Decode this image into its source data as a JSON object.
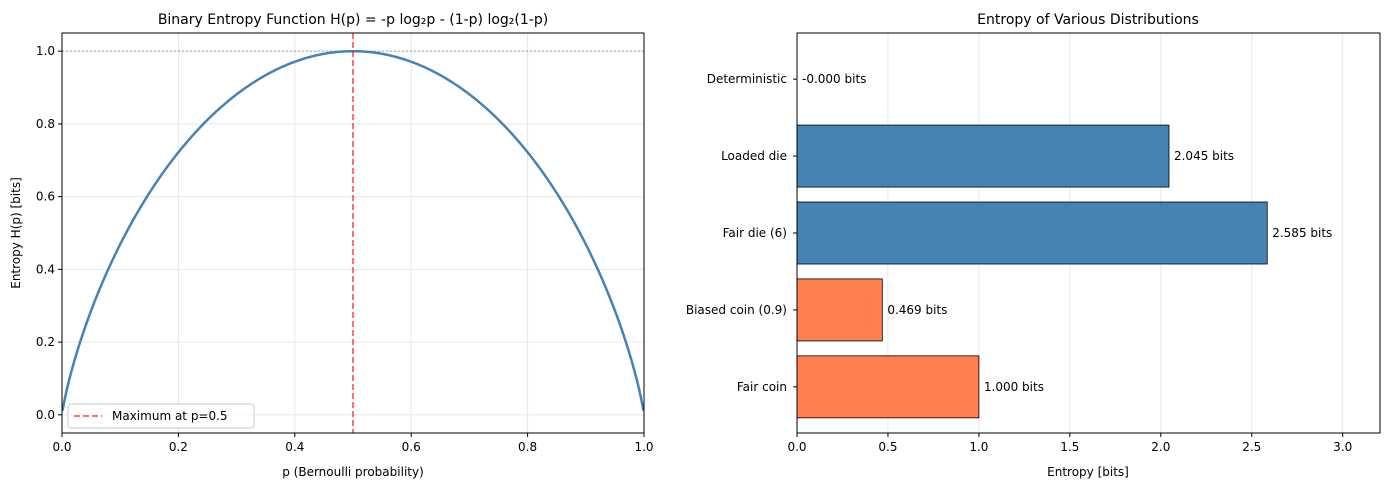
{
  "chart_data": [
    {
      "type": "line",
      "title": "Binary Entropy Function H(p) = -p log₂p - (1-p) log₂(1-p)",
      "xlabel": "p (Bernoulli probability)",
      "ylabel": "Entropy H(p) [bits]",
      "xlim": [
        0,
        1
      ],
      "ylim": [
        -0.05,
        1.05
      ],
      "xticks": [
        "0.0",
        "0.2",
        "0.4",
        "0.6",
        "0.8",
        "1.0"
      ],
      "yticks": [
        "0.0",
        "0.2",
        "0.4",
        "0.6",
        "0.8",
        "1.0"
      ],
      "grid": true,
      "series": [
        {
          "function": "binary_entropy",
          "color": "#4682b4"
        }
      ],
      "annotations": {
        "vline": {
          "x": 0.5,
          "color": "#ff0000",
          "label": "Maximum at p=0.5"
        },
        "hline": {
          "y": 1.0,
          "color": "#808080"
        }
      },
      "legend": {
        "placement": "lower-left",
        "entries": [
          "Maximum at p=0.5"
        ]
      }
    },
    {
      "type": "bar",
      "orientation": "horizontal",
      "title": "Entropy of Various Distributions",
      "xlabel": "Entropy [bits]",
      "ylabel": "",
      "xlim": [
        0,
        3.2
      ],
      "xticks": [
        "0.0",
        "0.5",
        "1.0",
        "1.5",
        "2.0",
        "2.5",
        "3.0"
      ],
      "grid": true,
      "categories": [
        "Fair coin",
        "Biased coin (0.9)",
        "Fair die (6)",
        "Loaded die",
        "Deterministic"
      ],
      "values": [
        1.0,
        0.469,
        2.585,
        2.045,
        0.0
      ],
      "data_labels": [
        "1.000 bits",
        "0.469 bits",
        "2.585 bits",
        "2.045 bits",
        "-0.000 bits"
      ],
      "colors": [
        "#ff7f50",
        "#ff7f50",
        "#4682b4",
        "#4682b4",
        "#4682b4"
      ]
    }
  ]
}
